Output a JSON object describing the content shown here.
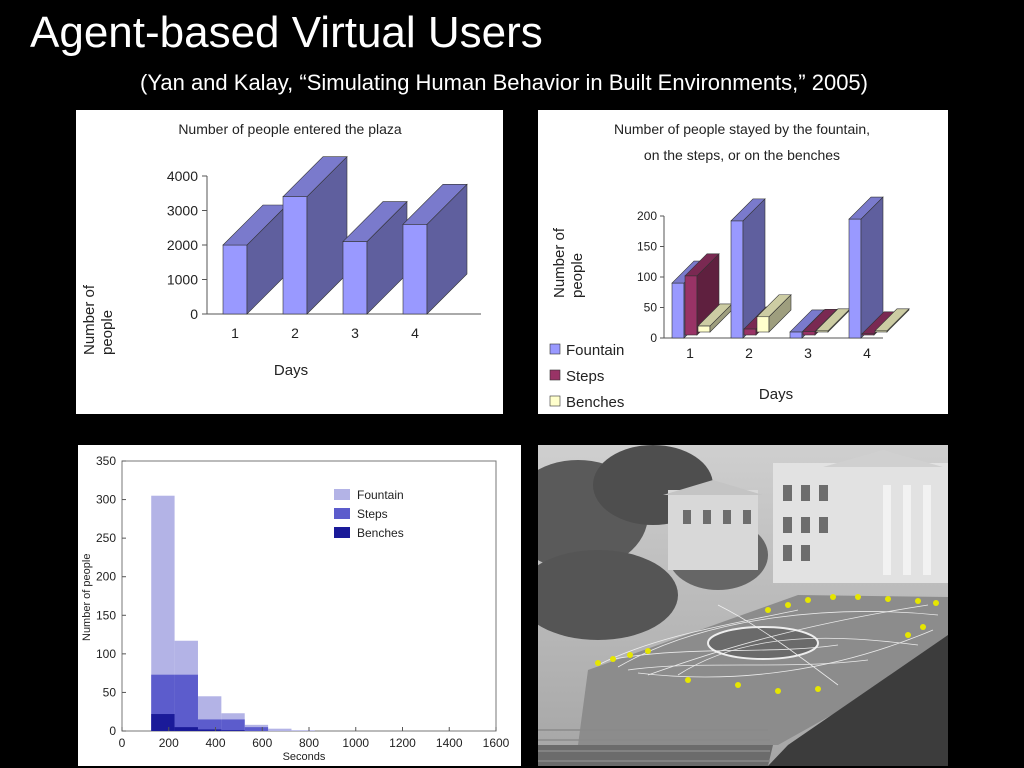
{
  "slide": {
    "title": "Agent-based Virtual Users",
    "subtitle": "(Yan and Kalay, “Simulating Human Behavior in Built Environments,” 2005)"
  },
  "chart_data": [
    {
      "id": "entered",
      "type": "bar",
      "title": "Number of people entered the plaza",
      "xlabel": "Days",
      "ylabel": "Number of people",
      "categories": [
        "1",
        "2",
        "3",
        "4"
      ],
      "values": [
        2000,
        3400,
        2100,
        2600
      ],
      "yticks": [
        0,
        1000,
        2000,
        3000,
        4000
      ],
      "ylim": [
        0,
        4000
      ],
      "color": "#9999ff"
    },
    {
      "id": "stayed",
      "type": "bar",
      "title": "Number of people stayed by the fountain, on the steps, or on the benches",
      "title_lines": [
        "Number of people stayed by the fountain,",
        "on the steps, or on the benches"
      ],
      "xlabel": "Days",
      "ylabel": "Number of people",
      "categories": [
        "1",
        "2",
        "3",
        "4"
      ],
      "yticks": [
        0,
        50,
        100,
        150,
        200
      ],
      "ylim": [
        0,
        200
      ],
      "legend_position": "bottom-left",
      "series": [
        {
          "name": "Fountain",
          "values": [
            90,
            192,
            10,
            195
          ],
          "color": "#9999ff"
        },
        {
          "name": "Steps",
          "values": [
            97,
            10,
            6,
            2
          ],
          "color": "#993366"
        },
        {
          "name": "Benches",
          "values": [
            10,
            25,
            2,
            2
          ],
          "color": "#ffffcc"
        }
      ]
    },
    {
      "id": "histogram",
      "type": "bar",
      "title": "",
      "xlabel": "Seconds",
      "ylabel": "Number of people",
      "xlim": [
        0,
        1600
      ],
      "ylim": [
        0,
        350
      ],
      "xticks": [
        0,
        200,
        400,
        600,
        800,
        1000,
        1200,
        1400,
        1600
      ],
      "yticks": [
        0,
        50,
        100,
        150,
        200,
        250,
        300,
        350
      ],
      "bins": [
        [
          125,
          225
        ],
        [
          225,
          325
        ],
        [
          325,
          425
        ],
        [
          425,
          525
        ],
        [
          525,
          625
        ],
        [
          625,
          725
        ],
        [
          725,
          825
        ]
      ],
      "legend_position": "top-right",
      "series": [
        {
          "name": "Fountain",
          "values": [
            305,
            117,
            45,
            23,
            8,
            3,
            1
          ],
          "color": "#b3b3e6"
        },
        {
          "name": "Steps",
          "values": [
            73,
            73,
            15,
            15,
            5,
            0,
            0
          ],
          "color": "#5c5ccc"
        },
        {
          "name": "Benches",
          "values": [
            22,
            5,
            2,
            1,
            0,
            0,
            0
          ],
          "color": "#1a1a99"
        }
      ]
    }
  ],
  "photo": {
    "description_icon": "plaza-simulation-photo-icon"
  }
}
